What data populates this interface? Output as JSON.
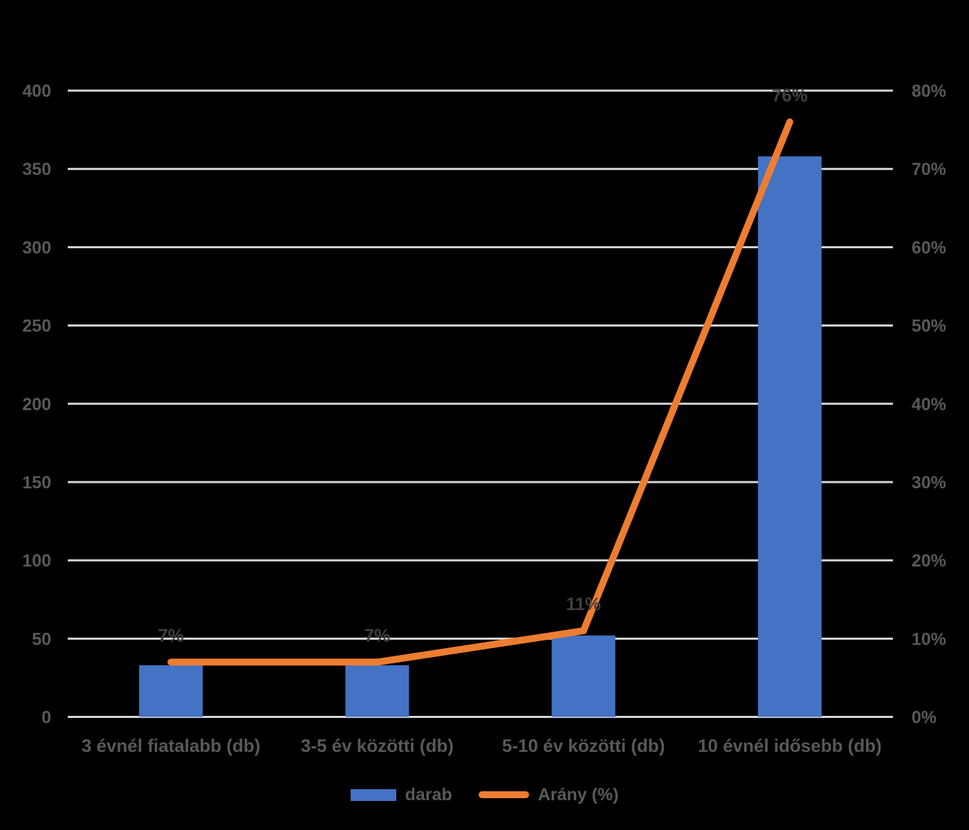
{
  "background": "#000000",
  "chart_data": {
    "type": "combo",
    "title": "",
    "categories": [
      "3 évnél fiatalabb (db)",
      "3-5 év közötti (db)",
      "5-10 év közötti (db)",
      "10 évnél idősebb (db)"
    ],
    "series": [
      {
        "name": "darab",
        "type": "bar",
        "axis": "left",
        "color": "#4472C4",
        "values": [
          33,
          33,
          52,
          358
        ]
      },
      {
        "name": "Arány (%)",
        "type": "line",
        "axis": "right",
        "color": "#ED7D31",
        "values": [
          7,
          7,
          11,
          76
        ],
        "point_labels": [
          "7%",
          "7%",
          "11%",
          "76%"
        ]
      }
    ],
    "left_axis": {
      "min": 0,
      "max": 400,
      "step": 50,
      "tick_labels": [
        "0",
        "50",
        "100",
        "150",
        "200",
        "250",
        "300",
        "350",
        "400"
      ]
    },
    "right_axis": {
      "min": 0,
      "max": 80,
      "step": 10,
      "tick_labels": [
        "0%",
        "10%",
        "20%",
        "30%",
        "40%",
        "50%",
        "60%",
        "70%",
        "80%"
      ]
    },
    "grid": true,
    "legend_position": "bottom",
    "colors": {
      "gridline": "#D9D9D9",
      "axis_text": "#595959",
      "category_text": "#595959",
      "data_label_text": "#404040"
    }
  },
  "legend": {
    "items": [
      {
        "label": "darab",
        "color": "#4472C4",
        "shape": "rect"
      },
      {
        "label": "Arány (%)",
        "color": "#ED7D31",
        "shape": "line"
      }
    ]
  }
}
